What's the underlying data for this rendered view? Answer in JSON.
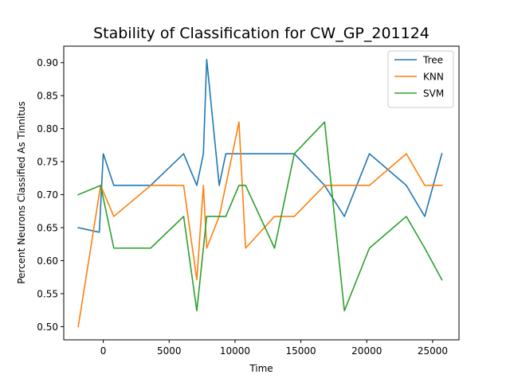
{
  "chart_data": {
    "type": "line",
    "title": "Stability of Classification for CW_GP_201124",
    "xlabel": "Time",
    "ylabel": "Percent Neurons Classified As Tinnitus",
    "xlim": [
      -3000,
      27000
    ],
    "ylim": [
      0.48,
      0.925
    ],
    "x_ticks": [
      0,
      5000,
      10000,
      15000,
      20000,
      25000
    ],
    "x_tick_labels": [
      "0",
      "5000",
      "10000",
      "15000",
      "20000",
      "25000"
    ],
    "y_ticks": [
      0.5,
      0.55,
      0.6,
      0.65,
      0.7,
      0.75,
      0.8,
      0.85,
      0.9
    ],
    "y_tick_labels": [
      "0.50",
      "0.55",
      "0.60",
      "0.65",
      "0.70",
      "0.75",
      "0.80",
      "0.85",
      "0.90"
    ],
    "grid": false,
    "legend_position": "top-right",
    "series": [
      {
        "name": "Tree",
        "color": "#1f77b4",
        "x": [
          -1900,
          -300,
          0,
          800,
          3600,
          6100,
          7100,
          7600,
          7850,
          8800,
          9300,
          10300,
          10800,
          13000,
          14500,
          16800,
          18300,
          20200,
          23000,
          24400,
          25700
        ],
        "y": [
          0.65,
          0.643,
          0.762,
          0.714,
          0.714,
          0.762,
          0.714,
          0.762,
          0.905,
          0.714,
          0.762,
          0.762,
          0.762,
          0.762,
          0.762,
          0.714,
          0.667,
          0.762,
          0.714,
          0.667,
          0.762
        ]
      },
      {
        "name": "KNN",
        "color": "#ff7f0e",
        "x": [
          -1900,
          -200,
          800,
          3600,
          6100,
          7100,
          7600,
          7850,
          8800,
          9300,
          10300,
          10800,
          13000,
          14500,
          16800,
          18300,
          20200,
          23000,
          24400,
          25700
        ],
        "y": [
          0.5,
          0.714,
          0.667,
          0.714,
          0.714,
          0.571,
          0.714,
          0.619,
          0.667,
          0.714,
          0.81,
          0.619,
          0.667,
          0.667,
          0.714,
          0.714,
          0.714,
          0.762,
          0.714,
          0.714
        ]
      },
      {
        "name": "SVM",
        "color": "#2ca02c",
        "x": [
          -1900,
          -200,
          800,
          3600,
          6100,
          7100,
          7850,
          9300,
          10300,
          10800,
          13000,
          14500,
          16800,
          18300,
          20200,
          23000,
          24400,
          25700
        ],
        "y": [
          0.7,
          0.714,
          0.619,
          0.619,
          0.667,
          0.524,
          0.667,
          0.667,
          0.714,
          0.714,
          0.619,
          0.762,
          0.81,
          0.524,
          0.619,
          0.667,
          0.619,
          0.571
        ]
      }
    ]
  }
}
